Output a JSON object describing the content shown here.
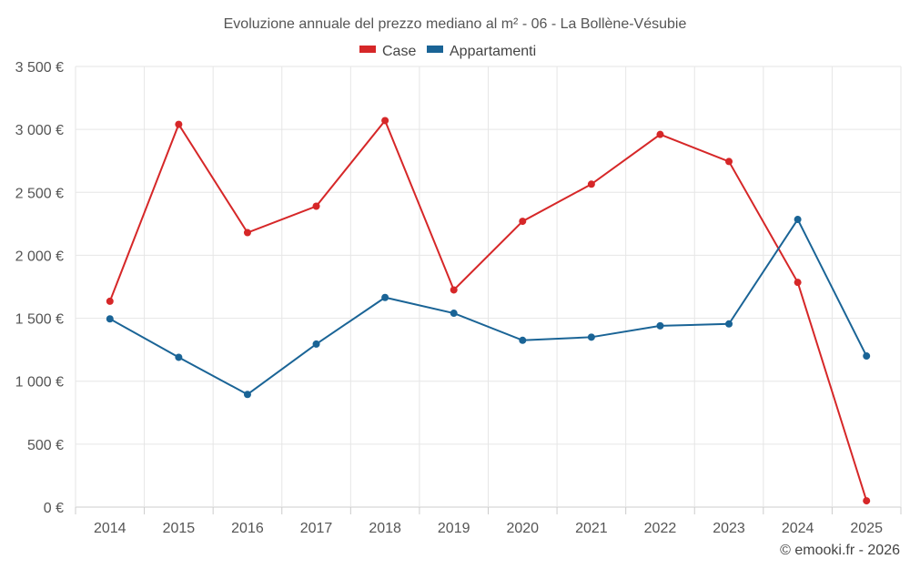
{
  "chart_data": {
    "type": "line",
    "title": "Evoluzione annuale del prezzo mediano al m² - 06 - La Bollène-Vésubie",
    "categories": [
      "2014",
      "2015",
      "2016",
      "2017",
      "2018",
      "2019",
      "2020",
      "2021",
      "2022",
      "2023",
      "2024",
      "2025"
    ],
    "series": [
      {
        "name": "Case",
        "color": "#d62728",
        "values": [
          1635,
          3040,
          2180,
          2390,
          3070,
          1725,
          2270,
          2565,
          2960,
          2745,
          1785,
          50
        ]
      },
      {
        "name": "Appartamenti",
        "color": "#1a6496",
        "values": [
          1495,
          1190,
          895,
          1295,
          1665,
          1540,
          1325,
          1350,
          1440,
          1455,
          2285,
          1200
        ]
      }
    ],
    "ylim": [
      0,
      3500
    ],
    "yticks": [
      0,
      500,
      1000,
      1500,
      2000,
      2500,
      3000,
      3500
    ],
    "ytick_labels": [
      "0 €",
      "500 €",
      "1 000 €",
      "1 500 €",
      "2 000 €",
      "2 500 €",
      "3 000 €",
      "3 500 €"
    ],
    "xlabel": "",
    "ylabel": "",
    "grid": true,
    "legend_position": "top-center"
  },
  "credit": "© emooki.fr - 2026"
}
